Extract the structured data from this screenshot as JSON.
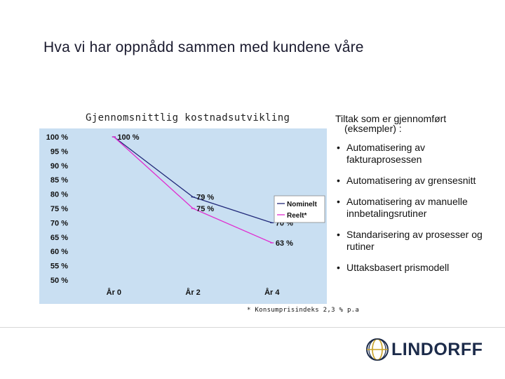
{
  "slide": {
    "title": "Hva vi har oppnådd sammen med kundene våre",
    "chart_caption": "Gjennomsnittlig kostnadsutvikling",
    "footnote": "* Konsumprisindeks 2,3 % p.a",
    "right_heading_line1": "Tiltak som er gjennomført",
    "right_heading_line2": "(eksempler) :",
    "bullets": [
      "Automatisering av fakturaprosessen",
      "Automatisering av grensesnitt",
      "Automatisering av manuelle innbetalingsrutiner",
      "Standarisering av prosesser og rutiner",
      "Uttaksbasert prismodell"
    ],
    "bullet_glyph": "•",
    "logo_text": "LINDORFF",
    "logo_icon": "lindorff-globe-icon"
  },
  "colors": {
    "panel": "#c9dff2",
    "nominal": "#222a7a",
    "real": "#e02bd0",
    "logo": "#1c2b4a",
    "logo_accent": "#c9a227"
  },
  "chart_data": {
    "type": "line",
    "categories": [
      "År 0",
      "År 2",
      "År 4"
    ],
    "x": [
      0,
      2,
      4
    ],
    "xlim": [
      -1,
      4.5
    ],
    "ylim": [
      50,
      100
    ],
    "ytick_values": [
      100,
      95,
      90,
      85,
      80,
      75,
      70,
      65,
      60,
      55,
      50
    ],
    "ytick_labels": [
      "100 %",
      "95 %",
      "90 %",
      "85 %",
      "80 %",
      "75 %",
      "70 %",
      "65 %",
      "60 %",
      "55 %",
      "50 %"
    ],
    "grid": false,
    "legend_position": "right",
    "series": [
      {
        "name": "Nominelt",
        "values": [
          100,
          79,
          70
        ],
        "labels": [
          "100 %",
          "79 %",
          "70 %"
        ],
        "color": "#222a7a"
      },
      {
        "name": "Reelt*",
        "values": [
          100,
          75,
          63
        ],
        "labels": [
          "",
          "75 %",
          "63 %"
        ],
        "color": "#e02bd0"
      }
    ]
  }
}
